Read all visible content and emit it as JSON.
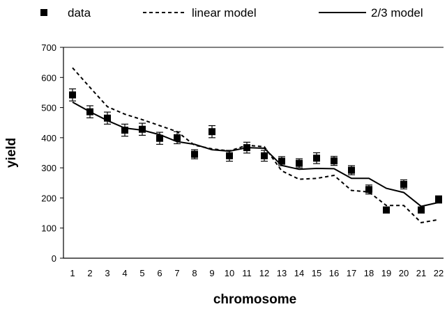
{
  "chart_data": {
    "type": "line",
    "title": "",
    "xlabel": "chromosome",
    "ylabel": "yield",
    "categories": [
      "1",
      "2",
      "3",
      "4",
      "5",
      "6",
      "7",
      "8",
      "9",
      "10",
      "11",
      "12",
      "13",
      "14",
      "15",
      "16",
      "17",
      "18",
      "19",
      "20",
      "21",
      "22"
    ],
    "ylim": [
      0,
      700
    ],
    "yticks": [
      "0",
      "100",
      "200",
      "300",
      "400",
      "500",
      "600",
      "700"
    ],
    "grid": false,
    "legend_position": "top",
    "series": [
      {
        "name": "data",
        "kind": "points",
        "marker": "square",
        "values": [
          542,
          486,
          465,
          425,
          428,
          398,
          400,
          345,
          420,
          340,
          367,
          340,
          322,
          315,
          332,
          323,
          292,
          228,
          160,
          245,
          160,
          195
        ],
        "error": [
          20,
          20,
          20,
          20,
          20,
          20,
          20,
          15,
          20,
          18,
          18,
          18,
          15,
          15,
          18,
          15,
          15,
          15,
          10,
          15,
          10,
          12
        ]
      },
      {
        "name": "linear model",
        "kind": "line",
        "dash": "dashed",
        "values": [
          632,
          567,
          503,
          478,
          460,
          440,
          420,
          375,
          363,
          356,
          375,
          370,
          290,
          262,
          265,
          275,
          225,
          220,
          175,
          175,
          118,
          128
        ]
      },
      {
        "name": "2/3 model",
        "kind": "line",
        "dash": "solid",
        "values": [
          518,
          486,
          457,
          432,
          425,
          410,
          387,
          378,
          360,
          355,
          367,
          365,
          308,
          295,
          298,
          297,
          265,
          265,
          232,
          218,
          172,
          185
        ]
      }
    ],
    "colors": {
      "data": "#000000",
      "linear_model": "#000000",
      "two_thirds_model": "#000000"
    }
  }
}
